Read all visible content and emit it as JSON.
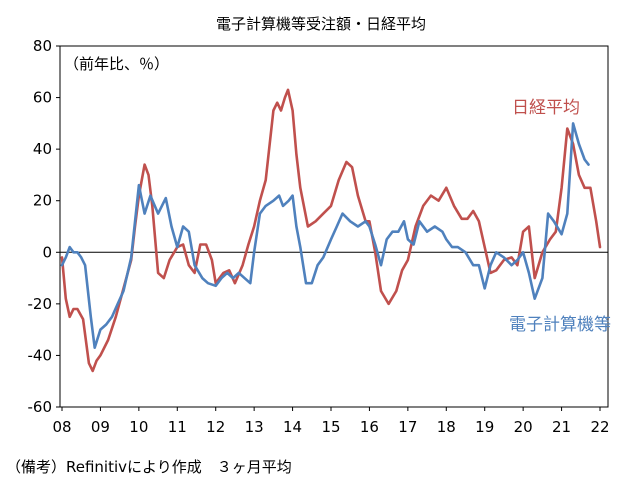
{
  "chart_data": {
    "type": "line",
    "title": "電子計算機等受注額・日経平均",
    "unit_label": "（前年比、％）",
    "source_note": "（備考）Refinitivにより作成　３ヶ月平均",
    "ylim": [
      -60,
      80
    ],
    "y_ticks": [
      80,
      60,
      40,
      20,
      0,
      -20,
      -40,
      -60
    ],
    "xlim": [
      2008,
      2022
    ],
    "x_ticks": [
      {
        "x": 2008,
        "label": "08"
      },
      {
        "x": 2009,
        "label": "09"
      },
      {
        "x": 2010,
        "label": "10"
      },
      {
        "x": 2011,
        "label": "11"
      },
      {
        "x": 2012,
        "label": "12"
      },
      {
        "x": 2013,
        "label": "13"
      },
      {
        "x": 2014,
        "label": "14"
      },
      {
        "x": 2015,
        "label": "15"
      },
      {
        "x": 2016,
        "label": "16"
      },
      {
        "x": 2017,
        "label": "17"
      },
      {
        "x": 2018,
        "label": "18"
      },
      {
        "x": 2019,
        "label": "19"
      },
      {
        "x": 2020,
        "label": "20"
      },
      {
        "x": 2021,
        "label": "21"
      },
      {
        "x": 2022,
        "label": "22"
      }
    ],
    "grid": false,
    "series": [
      {
        "name": "日経平均",
        "color": "#c0504d",
        "points": [
          [
            2008.0,
            -2
          ],
          [
            2008.1,
            -18
          ],
          [
            2008.2,
            -25
          ],
          [
            2008.3,
            -22
          ],
          [
            2008.4,
            -22
          ],
          [
            2008.55,
            -26
          ],
          [
            2008.7,
            -43
          ],
          [
            2008.8,
            -46
          ],
          [
            2008.9,
            -42
          ],
          [
            2009.0,
            -40
          ],
          [
            2009.2,
            -34
          ],
          [
            2009.4,
            -25
          ],
          [
            2009.6,
            -14
          ],
          [
            2009.8,
            -3
          ],
          [
            2009.9,
            10
          ],
          [
            2010.0,
            22
          ],
          [
            2010.15,
            34
          ],
          [
            2010.25,
            30
          ],
          [
            2010.35,
            18
          ],
          [
            2010.5,
            -8
          ],
          [
            2010.65,
            -10
          ],
          [
            2010.8,
            -3
          ],
          [
            2011.0,
            2
          ],
          [
            2011.15,
            3
          ],
          [
            2011.3,
            -5
          ],
          [
            2011.45,
            -8
          ],
          [
            2011.6,
            3
          ],
          [
            2011.75,
            3
          ],
          [
            2011.9,
            -3
          ],
          [
            2012.0,
            -12
          ],
          [
            2012.2,
            -8
          ],
          [
            2012.35,
            -7
          ],
          [
            2012.5,
            -12
          ],
          [
            2012.7,
            -5
          ],
          [
            2012.85,
            3
          ],
          [
            2013.0,
            10
          ],
          [
            2013.15,
            20
          ],
          [
            2013.3,
            28
          ],
          [
            2013.5,
            55
          ],
          [
            2013.6,
            58
          ],
          [
            2013.7,
            55
          ],
          [
            2013.8,
            60
          ],
          [
            2013.88,
            63
          ],
          [
            2014.0,
            55
          ],
          [
            2014.1,
            38
          ],
          [
            2014.2,
            25
          ],
          [
            2014.4,
            10
          ],
          [
            2014.6,
            12
          ],
          [
            2014.8,
            15
          ],
          [
            2015.0,
            18
          ],
          [
            2015.2,
            28
          ],
          [
            2015.4,
            35
          ],
          [
            2015.55,
            33
          ],
          [
            2015.7,
            22
          ],
          [
            2015.9,
            12
          ],
          [
            2016.0,
            12
          ],
          [
            2016.15,
            0
          ],
          [
            2016.3,
            -15
          ],
          [
            2016.5,
            -20
          ],
          [
            2016.7,
            -15
          ],
          [
            2016.85,
            -7
          ],
          [
            2017.0,
            -3
          ],
          [
            2017.2,
            10
          ],
          [
            2017.4,
            18
          ],
          [
            2017.6,
            22
          ],
          [
            2017.8,
            20
          ],
          [
            2018.0,
            25
          ],
          [
            2018.2,
            18
          ],
          [
            2018.4,
            13
          ],
          [
            2018.55,
            13
          ],
          [
            2018.7,
            16
          ],
          [
            2018.85,
            12
          ],
          [
            2019.0,
            2
          ],
          [
            2019.15,
            -8
          ],
          [
            2019.3,
            -7
          ],
          [
            2019.5,
            -3
          ],
          [
            2019.7,
            -2
          ],
          [
            2019.85,
            -5
          ],
          [
            2020.0,
            8
          ],
          [
            2020.15,
            10
          ],
          [
            2020.3,
            -10
          ],
          [
            2020.5,
            0
          ],
          [
            2020.7,
            5
          ],
          [
            2020.85,
            8
          ],
          [
            2021.0,
            25
          ],
          [
            2021.15,
            48
          ],
          [
            2021.3,
            42
          ],
          [
            2021.45,
            30
          ],
          [
            2021.6,
            25
          ],
          [
            2021.75,
            25
          ],
          [
            2021.9,
            12
          ],
          [
            2022.0,
            2
          ]
        ]
      },
      {
        "name": "電子計算機等",
        "color": "#4f81bd",
        "points": [
          [
            2008.0,
            -5
          ],
          [
            2008.1,
            -2
          ],
          [
            2008.2,
            2
          ],
          [
            2008.3,
            0
          ],
          [
            2008.4,
            0
          ],
          [
            2008.5,
            -2
          ],
          [
            2008.6,
            -5
          ],
          [
            2008.75,
            -25
          ],
          [
            2008.85,
            -37
          ],
          [
            2009.0,
            -30
          ],
          [
            2009.15,
            -28
          ],
          [
            2009.3,
            -25
          ],
          [
            2009.45,
            -20
          ],
          [
            2009.6,
            -15
          ],
          [
            2009.8,
            -2
          ],
          [
            2010.0,
            26
          ],
          [
            2010.15,
            15
          ],
          [
            2010.3,
            22
          ],
          [
            2010.5,
            15
          ],
          [
            2010.7,
            21
          ],
          [
            2010.85,
            10
          ],
          [
            2011.0,
            2
          ],
          [
            2011.15,
            10
          ],
          [
            2011.3,
            8
          ],
          [
            2011.45,
            -5
          ],
          [
            2011.65,
            -10
          ],
          [
            2011.8,
            -12
          ],
          [
            2012.0,
            -13
          ],
          [
            2012.15,
            -10
          ],
          [
            2012.3,
            -8
          ],
          [
            2012.45,
            -10
          ],
          [
            2012.6,
            -8
          ],
          [
            2012.75,
            -10
          ],
          [
            2012.9,
            -12
          ],
          [
            2013.0,
            0
          ],
          [
            2013.15,
            15
          ],
          [
            2013.3,
            18
          ],
          [
            2013.5,
            20
          ],
          [
            2013.65,
            22
          ],
          [
            2013.75,
            18
          ],
          [
            2013.9,
            20
          ],
          [
            2014.0,
            22
          ],
          [
            2014.1,
            10
          ],
          [
            2014.2,
            2
          ],
          [
            2014.35,
            -12
          ],
          [
            2014.5,
            -12
          ],
          [
            2014.65,
            -5
          ],
          [
            2014.8,
            -2
          ],
          [
            2015.0,
            5
          ],
          [
            2015.15,
            10
          ],
          [
            2015.3,
            15
          ],
          [
            2015.5,
            12
          ],
          [
            2015.7,
            10
          ],
          [
            2015.9,
            12
          ],
          [
            2016.0,
            10
          ],
          [
            2016.15,
            3
          ],
          [
            2016.3,
            -5
          ],
          [
            2016.45,
            5
          ],
          [
            2016.6,
            8
          ],
          [
            2016.75,
            8
          ],
          [
            2016.9,
            12
          ],
          [
            2017.0,
            5
          ],
          [
            2017.15,
            3
          ],
          [
            2017.3,
            12
          ],
          [
            2017.5,
            8
          ],
          [
            2017.7,
            10
          ],
          [
            2017.9,
            8
          ],
          [
            2018.0,
            5
          ],
          [
            2018.15,
            2
          ],
          [
            2018.3,
            2
          ],
          [
            2018.5,
            0
          ],
          [
            2018.7,
            -5
          ],
          [
            2018.85,
            -5
          ],
          [
            2019.0,
            -14
          ],
          [
            2019.15,
            -5
          ],
          [
            2019.3,
            0
          ],
          [
            2019.5,
            -2
          ],
          [
            2019.7,
            -5
          ],
          [
            2019.85,
            -3
          ],
          [
            2020.0,
            0
          ],
          [
            2020.15,
            -8
          ],
          [
            2020.3,
            -18
          ],
          [
            2020.5,
            -10
          ],
          [
            2020.65,
            15
          ],
          [
            2020.8,
            12
          ],
          [
            2021.0,
            7
          ],
          [
            2021.15,
            15
          ],
          [
            2021.3,
            50
          ],
          [
            2021.45,
            42
          ],
          [
            2021.6,
            36
          ],
          [
            2021.7,
            34
          ]
        ]
      }
    ]
  },
  "labels": {
    "nikkei": "日経平均",
    "computer": "電子計算機等"
  }
}
